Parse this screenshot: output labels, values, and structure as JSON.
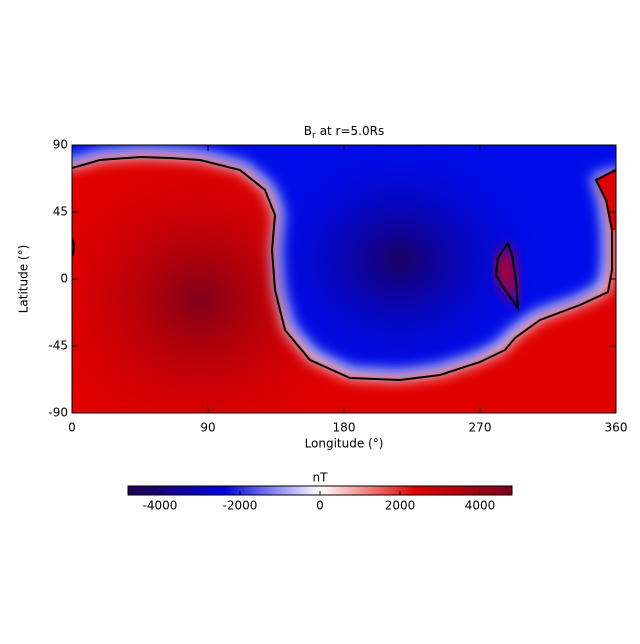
{
  "chart_data": {
    "type": "heatmap",
    "title": "B",
    "title_subscript": "r",
    "title_rest": "at r=5.0Rs",
    "x_label": "Longitude (°)",
    "y_label": "Latitude (°)",
    "xlim": [
      0,
      360
    ],
    "xticks": [
      0,
      90,
      180,
      270,
      360
    ],
    "ylim": [
      -90,
      90
    ],
    "yticks": [
      -90,
      -45,
      0,
      45,
      90
    ],
    "colorbar": {
      "label": "nT",
      "lim": [
        -4800,
        4800
      ],
      "ticks": [
        -4000,
        -2000,
        0,
        2000,
        4000
      ],
      "colors": [
        "#22004a",
        "#0000e0",
        "#ffffff",
        "#e00000",
        "#7a0020"
      ]
    }
  }
}
